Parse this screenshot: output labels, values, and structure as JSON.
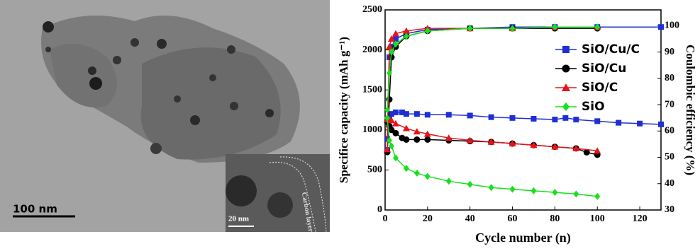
{
  "image": {
    "scale_bar": "100 nm",
    "inset_scale_bar": "20 nm",
    "inset_label": "Carbon layer"
  },
  "chart_data": {
    "type": "line",
    "xlabel": "Cycle number (n)",
    "ylabel": "Specifice capacity (mAh g⁻¹)",
    "y2label": "Coulombic efficiency (%)",
    "xlim": [
      0,
      130
    ],
    "xticks": [
      0,
      20,
      40,
      60,
      80,
      100,
      120
    ],
    "ylim": [
      0,
      2500
    ],
    "yticks": [
      0,
      500,
      1000,
      1500,
      2000,
      2500
    ],
    "y2lim": [
      30,
      106
    ],
    "y2ticks": [
      30,
      40,
      50,
      60,
      70,
      80,
      90,
      100
    ],
    "series": [
      {
        "name": "SiO/Cu/C",
        "color": "#1f2fd6",
        "marker": "square",
        "x": [
          1,
          2,
          3,
          5,
          8,
          10,
          15,
          20,
          30,
          40,
          50,
          60,
          70,
          80,
          85,
          90,
          100,
          110,
          120,
          130
        ],
        "values": [
          750,
          1150,
          1200,
          1220,
          1220,
          1200,
          1200,
          1190,
          1190,
          1180,
          1160,
          1150,
          1140,
          1130,
          1150,
          1130,
          1110,
          1090,
          1080,
          1070
        ],
        "efficiency_x": [
          1,
          2,
          3,
          5,
          10,
          20,
          40,
          60,
          80,
          100,
          130
        ],
        "efficiency": [
          57,
          88,
          92,
          95,
          97,
          98.5,
          99,
          99.5,
          99.5,
          99.5,
          99.5
        ]
      },
      {
        "name": "SiO/Cu",
        "color": "#000000",
        "marker": "circle",
        "x": [
          1,
          2,
          3,
          5,
          8,
          10,
          15,
          20,
          30,
          40,
          50,
          60,
          70,
          80,
          90,
          95,
          100
        ],
        "values": [
          1100,
          1050,
          1000,
          960,
          900,
          880,
          880,
          880,
          870,
          860,
          850,
          830,
          810,
          790,
          770,
          720,
          690
        ],
        "efficiency_x": [
          1,
          2,
          3,
          5,
          10,
          20,
          40,
          60,
          80,
          100
        ],
        "efficiency": [
          52,
          72,
          88,
          92,
          96,
          98,
          99,
          99,
          99,
          99
        ]
      },
      {
        "name": "SiO/C",
        "color": "#e8141a",
        "marker": "triangle",
        "x": [
          1,
          2,
          3,
          5,
          10,
          15,
          20,
          30,
          40,
          50,
          60,
          70,
          80,
          90,
          100
        ],
        "values": [
          1130,
          1130,
          1120,
          1080,
          1020,
          980,
          950,
          900,
          870,
          850,
          830,
          810,
          790,
          770,
          740
        ],
        "efficiency_x": [
          1,
          2,
          3,
          5,
          10,
          20,
          40,
          60,
          80,
          100
        ],
        "efficiency": [
          53,
          92,
          95,
          97,
          98,
          99,
          99,
          99,
          99.5,
          99.5
        ]
      },
      {
        "name": "SiO",
        "color": "#17e01f",
        "marker": "diamond",
        "x": [
          1,
          2,
          3,
          5,
          10,
          15,
          20,
          30,
          40,
          50,
          60,
          70,
          80,
          90,
          100
        ],
        "values": [
          1150,
          870,
          800,
          650,
          520,
          460,
          420,
          360,
          320,
          280,
          260,
          240,
          220,
          200,
          170
        ],
        "efficiency_x": [
          1,
          2,
          3,
          5,
          10,
          20,
          40,
          60,
          80,
          100
        ],
        "efficiency": [
          68,
          82,
          90,
          93,
          96,
          98,
          99,
          99,
          99.5,
          99.5
        ]
      }
    ]
  }
}
